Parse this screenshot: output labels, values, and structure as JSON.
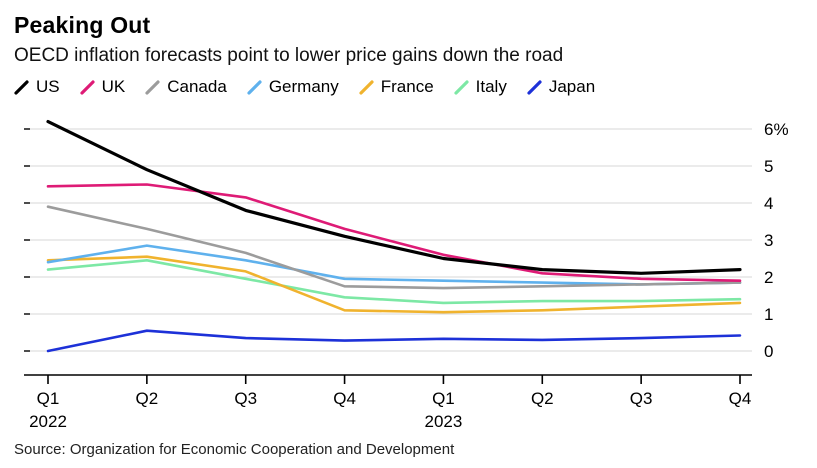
{
  "chart": {
    "title": "Peaking Out",
    "subtitle": "OECD inflation forecasts point to lower price gains down the road",
    "source": "Source: Organization for Economic Cooperation and Development"
  },
  "chart_data": {
    "type": "line",
    "title": "Peaking Out",
    "subtitle": "OECD inflation forecasts point to lower price gains down the road",
    "source": "Source: Organization for Economic Cooperation and Development",
    "unit": "%",
    "categories": [
      "Q1 2022",
      "Q2 2022",
      "Q3 2022",
      "Q4 2022",
      "Q1 2023",
      "Q2 2023",
      "Q3 2023",
      "Q4 2023"
    ],
    "x_labels": [
      {
        "q": "Q1",
        "year": "2022"
      },
      {
        "q": "Q2",
        "year": ""
      },
      {
        "q": "Q3",
        "year": ""
      },
      {
        "q": "Q4",
        "year": ""
      },
      {
        "q": "Q1",
        "year": "2023"
      },
      {
        "q": "Q2",
        "year": ""
      },
      {
        "q": "Q3",
        "year": ""
      },
      {
        "q": "Q4",
        "year": ""
      }
    ],
    "ylim": [
      0,
      6
    ],
    "y_ticks": [
      0,
      1,
      2,
      3,
      4,
      5,
      6
    ],
    "y_top_label": "6%",
    "grid": "horizontal",
    "legend_position": "top",
    "colors": {
      "grid": "#d7d7d7",
      "axis": "#000000"
    },
    "series": [
      {
        "name": "US",
        "color": "#000000",
        "width": 3.2,
        "values": [
          6.2,
          4.9,
          3.8,
          3.1,
          2.5,
          2.2,
          2.1,
          2.2
        ]
      },
      {
        "name": "UK",
        "color": "#de1b76",
        "width": 2.6,
        "values": [
          4.45,
          4.5,
          4.15,
          3.3,
          2.6,
          2.1,
          1.95,
          1.9
        ]
      },
      {
        "name": "Canada",
        "color": "#9c9c9c",
        "width": 2.6,
        "values": [
          3.9,
          3.3,
          2.65,
          1.75,
          1.7,
          1.75,
          1.8,
          1.85
        ]
      },
      {
        "name": "Germany",
        "color": "#5fb1ed",
        "width": 2.6,
        "values": [
          2.4,
          2.85,
          2.45,
          1.95,
          1.9,
          1.85,
          1.8,
          1.85
        ]
      },
      {
        "name": "France",
        "color": "#f0b32e",
        "width": 2.6,
        "values": [
          2.45,
          2.55,
          2.15,
          1.1,
          1.05,
          1.1,
          1.2,
          1.3
        ]
      },
      {
        "name": "Italy",
        "color": "#7de8a5",
        "width": 2.6,
        "values": [
          2.2,
          2.45,
          1.95,
          1.45,
          1.3,
          1.35,
          1.35,
          1.4
        ]
      },
      {
        "name": "Japan",
        "color": "#1d31d8",
        "width": 2.6,
        "values": [
          0.0,
          0.55,
          0.35,
          0.28,
          0.33,
          0.3,
          0.35,
          0.42
        ]
      }
    ]
  }
}
